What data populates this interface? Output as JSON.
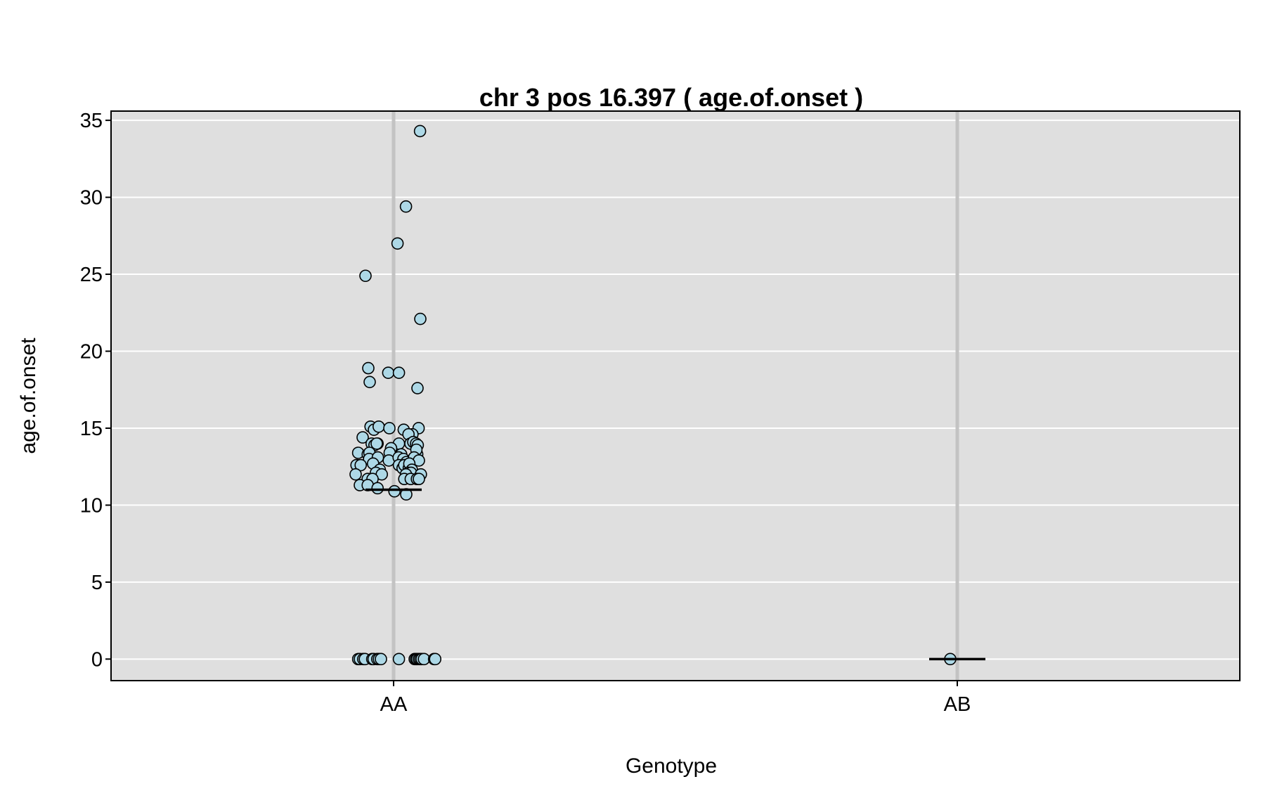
{
  "chart_data": {
    "type": "scatter",
    "title": "chr 3 pos 16.397 ( age.of.onset )",
    "xlabel": "Genotype",
    "ylabel": "age.of.onset",
    "categories": [
      "AA",
      "AB"
    ],
    "ylim": [
      -1.4,
      35.6
    ],
    "yticks": [
      0,
      5,
      10,
      15,
      20,
      25,
      30,
      35
    ],
    "grid": true,
    "legend": "none",
    "colors": {
      "panel": "#dfdfdf",
      "grid": "#ffffff",
      "category_line": "#c3c3c3",
      "point_fill": "#add8e6",
      "point_stroke": "#000000",
      "mean_line": "#000000"
    },
    "means": [
      {
        "category": "AA",
        "value": 11.0
      },
      {
        "category": "AB",
        "value": 0.0
      }
    ],
    "points": [
      {
        "category": "AA",
        "jitter": 0.94,
        "y": 34.3
      },
      {
        "category": "AA",
        "jitter": 0.44,
        "y": 29.4
      },
      {
        "category": "AA",
        "jitter": 0.14,
        "y": 27.0
      },
      {
        "category": "AA",
        "jitter": -1.0,
        "y": 24.9
      },
      {
        "category": "AA",
        "jitter": 0.95,
        "y": 22.1
      },
      {
        "category": "AA",
        "jitter": -0.9,
        "y": 18.9
      },
      {
        "category": "AA",
        "jitter": -0.85,
        "y": 18.0
      },
      {
        "category": "AA",
        "jitter": -0.19,
        "y": 18.6
      },
      {
        "category": "AA",
        "jitter": 0.19,
        "y": 18.6
      },
      {
        "category": "AA",
        "jitter": 0.85,
        "y": 17.6
      },
      {
        "category": "AA",
        "jitter": -0.82,
        "y": 15.1
      },
      {
        "category": "AA",
        "jitter": -0.7,
        "y": 14.9
      },
      {
        "category": "AA",
        "jitter": -0.53,
        "y": 15.1
      },
      {
        "category": "AA",
        "jitter": -0.15,
        "y": 15.0
      },
      {
        "category": "AA",
        "jitter": 0.36,
        "y": 14.9
      },
      {
        "category": "AA",
        "jitter": 0.89,
        "y": 15.0
      },
      {
        "category": "AA",
        "jitter": 0.67,
        "y": 14.6
      },
      {
        "category": "AA",
        "jitter": 0.53,
        "y": 14.6
      },
      {
        "category": "AA",
        "jitter": -1.1,
        "y": 14.4
      },
      {
        "category": "AA",
        "jitter": -0.78,
        "y": 14.0
      },
      {
        "category": "AA",
        "jitter": -0.68,
        "y": 13.9
      },
      {
        "category": "AA",
        "jitter": -0.57,
        "y": 14.0
      },
      {
        "category": "AA",
        "jitter": -0.6,
        "y": 14.0
      },
      {
        "category": "AA",
        "jitter": 0.19,
        "y": 14.0
      },
      {
        "category": "AA",
        "jitter": 0.6,
        "y": 14.0
      },
      {
        "category": "AA",
        "jitter": 0.7,
        "y": 14.1
      },
      {
        "category": "AA",
        "jitter": 0.8,
        "y": 14.0
      },
      {
        "category": "AA",
        "jitter": 0.86,
        "y": 13.9
      },
      {
        "category": "AA",
        "jitter": -0.09,
        "y": 13.7
      },
      {
        "category": "AA",
        "jitter": -1.26,
        "y": 13.4
      },
      {
        "category": "AA",
        "jitter": -0.92,
        "y": 13.3
      },
      {
        "category": "AA",
        "jitter": -0.86,
        "y": 13.4
      },
      {
        "category": "AA",
        "jitter": -0.14,
        "y": 13.4
      },
      {
        "category": "AA",
        "jitter": 0.27,
        "y": 13.3
      },
      {
        "category": "AA",
        "jitter": 0.84,
        "y": 13.3
      },
      {
        "category": "AA",
        "jitter": 0.81,
        "y": 13.6
      },
      {
        "category": "AA",
        "jitter": -0.87,
        "y": 13.0
      },
      {
        "category": "AA",
        "jitter": -0.56,
        "y": 13.1
      },
      {
        "category": "AA",
        "jitter": -0.17,
        "y": 12.9
      },
      {
        "category": "AA",
        "jitter": 0.18,
        "y": 13.1
      },
      {
        "category": "AA",
        "jitter": 0.35,
        "y": 13.0
      },
      {
        "category": "AA",
        "jitter": 0.46,
        "y": 12.8
      },
      {
        "category": "AA",
        "jitter": 0.73,
        "y": 13.1
      },
      {
        "category": "AA",
        "jitter": 0.9,
        "y": 12.9
      },
      {
        "category": "AA",
        "jitter": -1.32,
        "y": 12.6
      },
      {
        "category": "AA",
        "jitter": -1.17,
        "y": 12.6
      },
      {
        "category": "AA",
        "jitter": -0.73,
        "y": 12.7
      },
      {
        "category": "AA",
        "jitter": 0.19,
        "y": 12.6
      },
      {
        "category": "AA",
        "jitter": 0.32,
        "y": 12.4
      },
      {
        "category": "AA",
        "jitter": 0.38,
        "y": 12.6
      },
      {
        "category": "AA",
        "jitter": 0.54,
        "y": 12.4
      },
      {
        "category": "AA",
        "jitter": 0.56,
        "y": 12.7
      },
      {
        "category": "AA",
        "jitter": 0.65,
        "y": 12.3
      },
      {
        "category": "AA",
        "jitter": -0.53,
        "y": 12.2
      },
      {
        "category": "AA",
        "jitter": -0.49,
        "y": 12.3
      },
      {
        "category": "AA",
        "jitter": -1.35,
        "y": 12.0
      },
      {
        "category": "AA",
        "jitter": -0.63,
        "y": 12.1
      },
      {
        "category": "AA",
        "jitter": -0.42,
        "y": 12.0
      },
      {
        "category": "AA",
        "jitter": 0.52,
        "y": 12.1
      },
      {
        "category": "AA",
        "jitter": 0.62,
        "y": 12.1
      },
      {
        "category": "AA",
        "jitter": 0.44,
        "y": 12.0
      },
      {
        "category": "AA",
        "jitter": 0.97,
        "y": 12.0
      },
      {
        "category": "AA",
        "jitter": -0.92,
        "y": 11.7
      },
      {
        "category": "AA",
        "jitter": -0.75,
        "y": 11.7
      },
      {
        "category": "AA",
        "jitter": 0.38,
        "y": 11.7
      },
      {
        "category": "AA",
        "jitter": 0.61,
        "y": 11.7
      },
      {
        "category": "AA",
        "jitter": 0.83,
        "y": 11.7
      },
      {
        "category": "AA",
        "jitter": 0.9,
        "y": 11.7
      },
      {
        "category": "AA",
        "jitter": -1.2,
        "y": 11.3
      },
      {
        "category": "AA",
        "jitter": -0.92,
        "y": 11.3
      },
      {
        "category": "AA",
        "jitter": -0.57,
        "y": 11.1
      },
      {
        "category": "AA",
        "jitter": 0.03,
        "y": 10.9
      },
      {
        "category": "AA",
        "jitter": 0.45,
        "y": 10.7
      },
      {
        "category": "AA",
        "jitter": -1.26,
        "y": 0.0
      },
      {
        "category": "AA",
        "jitter": -1.2,
        "y": 0.0
      },
      {
        "category": "AA",
        "jitter": -1.08,
        "y": 0.0
      },
      {
        "category": "AA",
        "jitter": -1.02,
        "y": 0.0
      },
      {
        "category": "AA",
        "jitter": -0.76,
        "y": 0.0
      },
      {
        "category": "AA",
        "jitter": -0.71,
        "y": 0.0
      },
      {
        "category": "AA",
        "jitter": -0.58,
        "y": 0.0
      },
      {
        "category": "AA",
        "jitter": -0.52,
        "y": 0.0
      },
      {
        "category": "AA",
        "jitter": -0.45,
        "y": 0.0
      },
      {
        "category": "AA",
        "jitter": 0.19,
        "y": 0.0
      },
      {
        "category": "AA",
        "jitter": 0.75,
        "y": 0.0
      },
      {
        "category": "AA",
        "jitter": 0.8,
        "y": 0.0
      },
      {
        "category": "AA",
        "jitter": 0.84,
        "y": 0.0
      },
      {
        "category": "AA",
        "jitter": 0.9,
        "y": 0.0
      },
      {
        "category": "AA",
        "jitter": 0.95,
        "y": 0.0
      },
      {
        "category": "AA",
        "jitter": 1.0,
        "y": 0.0
      },
      {
        "category": "AA",
        "jitter": 1.08,
        "y": 0.0
      },
      {
        "category": "AA",
        "jitter": 1.44,
        "y": 0.0
      },
      {
        "category": "AA",
        "jitter": 1.48,
        "y": 0.0
      },
      {
        "category": "AB",
        "jitter": -0.25,
        "y": 0.0
      }
    ]
  }
}
